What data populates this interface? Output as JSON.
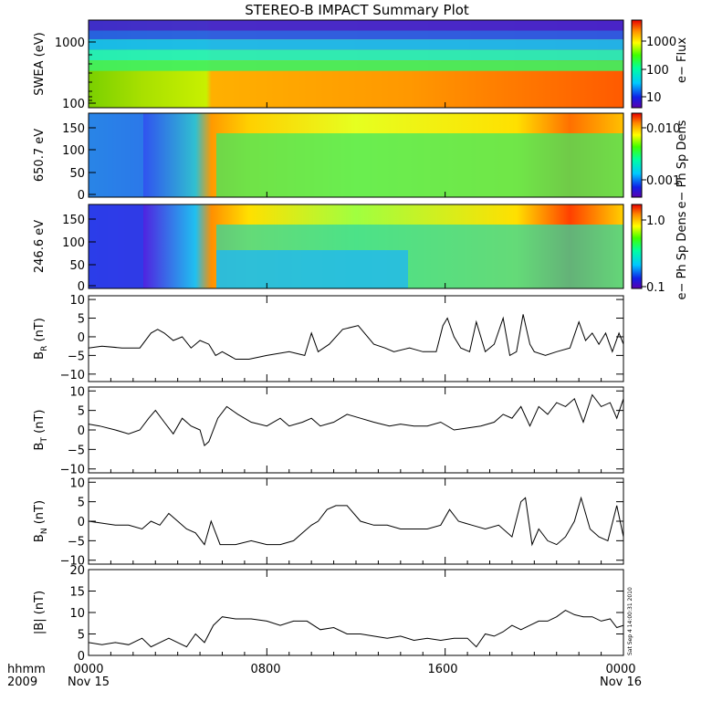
{
  "chart_data": {
    "type": "line",
    "title": "STEREO-B IMPACT Summary Plot",
    "time_axis": {
      "row1_labels": [
        "hhmm",
        "0000",
        "0800",
        "1600",
        "0000"
      ],
      "row2_labels": [
        "2009",
        "Nov 15",
        "Nov 16"
      ],
      "range_hours": [
        0,
        24
      ],
      "tick_hours": [
        0,
        8,
        16,
        24
      ]
    },
    "spectrograms": [
      {
        "name": "swea",
        "ylabel": "SWEA (eV)",
        "ytick_labels": [
          "1000",
          "100"
        ],
        "colorbar_label": "e− Flux",
        "colorbar_ticks": [
          "1000",
          "100",
          "10"
        ],
        "colorscale": "rainbow"
      },
      {
        "name": "pad650",
        "ylabel": "650.7 eV",
        "ytick_labels": [
          "150",
          "100",
          "50",
          "0"
        ],
        "ylim": [
          0,
          180
        ],
        "colorbar_label": "e− Ph Sp Dens",
        "colorbar_ticks": [
          "0.010",
          "0.001"
        ],
        "colorscale": "rainbow"
      },
      {
        "name": "pad246",
        "ylabel": "246.6 eV",
        "ytick_labels": [
          "150",
          "100",
          "50",
          "0"
        ],
        "ylim": [
          0,
          180
        ],
        "colorbar_label": "e− Ph Sp Dens",
        "colorbar_ticks": [
          "1.0",
          "0.1"
        ],
        "colorscale": "rainbow"
      }
    ],
    "line_panels": [
      {
        "name": "br",
        "ylabel_main": "B",
        "ylabel_sub": "R",
        "ylabel_unit": " (nT)",
        "ylim": [
          -12,
          11
        ],
        "ytick_values": [
          10,
          5,
          0,
          -5,
          -10
        ],
        "ytick_labels": [
          "10",
          "5",
          "0",
          "−5",
          "−10"
        ],
        "x": [
          0,
          0.6,
          1.5,
          2.3,
          2.8,
          3.1,
          3.4,
          3.8,
          4.2,
          4.6,
          5.0,
          5.4,
          5.7,
          6.0,
          6.6,
          7.2,
          8.0,
          9.0,
          9.7,
          10.0,
          10.3,
          10.8,
          11.4,
          12.1,
          12.8,
          13.3,
          13.7,
          14.4,
          15.0,
          15.6,
          15.9,
          16.1,
          16.4,
          16.7,
          17.1,
          17.4,
          17.8,
          18.2,
          18.6,
          18.9,
          19.2,
          19.5,
          19.8,
          20.0,
          20.5,
          21.0,
          21.6,
          22.0,
          22.3,
          22.6,
          22.9,
          23.2,
          23.5,
          23.8,
          24.0
        ],
        "y": [
          -3,
          -2.5,
          -3,
          -3,
          1,
          2,
          1,
          -1,
          0,
          -3,
          -1,
          -2,
          -5,
          -4,
          -6,
          -6,
          -5,
          -4,
          -5,
          1,
          -4,
          -2,
          2,
          3,
          -2,
          -3,
          -4,
          -3,
          -4,
          -4,
          3,
          5,
          0,
          -3,
          -4,
          4,
          -4,
          -2,
          5,
          -5,
          -4,
          6,
          -2,
          -4,
          -5,
          -4,
          -3,
          4,
          -1,
          1,
          -2,
          1,
          -4,
          1,
          -2
        ]
      },
      {
        "name": "bt",
        "ylabel_main": "B",
        "ylabel_sub": "T",
        "ylabel_unit": " (nT)",
        "ylim": [
          -11,
          11
        ],
        "ytick_values": [
          10,
          5,
          0,
          -5,
          -10
        ],
        "ytick_labels": [
          "10",
          "5",
          "0",
          "−5",
          "−10"
        ],
        "x": [
          0,
          0.5,
          1.2,
          1.8,
          2.3,
          2.7,
          3.0,
          3.4,
          3.8,
          4.2,
          4.6,
          5.0,
          5.2,
          5.4,
          5.8,
          6.2,
          6.7,
          7.3,
          8.0,
          8.6,
          9.0,
          9.6,
          10.0,
          10.4,
          11.0,
          11.6,
          12.2,
          12.8,
          13.5,
          14.0,
          14.6,
          15.2,
          15.8,
          16.4,
          17.0,
          17.6,
          18.2,
          18.6,
          19.0,
          19.4,
          19.8,
          20.2,
          20.6,
          21.0,
          21.4,
          21.8,
          22.2,
          22.6,
          23.0,
          23.4,
          23.7,
          24.0
        ],
        "y": [
          1.5,
          1,
          0,
          -1,
          0,
          3,
          5,
          2,
          -1,
          3,
          1,
          0,
          -4,
          -3,
          3,
          6,
          4,
          2,
          1,
          3,
          1,
          2,
          3,
          1,
          2,
          4,
          3,
          2,
          1,
          1.5,
          1,
          1,
          2,
          0,
          0.5,
          1,
          2,
          4,
          3,
          6,
          1,
          6,
          4,
          7,
          6,
          8,
          2,
          9,
          6,
          7,
          3,
          8
        ]
      },
      {
        "name": "bn",
        "ylabel_main": "B",
        "ylabel_sub": "N",
        "ylabel_unit": " (nT)",
        "ylim": [
          -11,
          11
        ],
        "ytick_values": [
          10,
          5,
          0,
          -5,
          -10
        ],
        "ytick_labels": [
          "10",
          "5",
          "0",
          "−5",
          "−10"
        ],
        "x": [
          0,
          0.6,
          1.2,
          1.8,
          2.4,
          2.8,
          3.2,
          3.6,
          4.0,
          4.4,
          4.8,
          5.2,
          5.5,
          5.9,
          6.6,
          7.3,
          8.0,
          8.6,
          9.2,
          9.6,
          10.0,
          10.3,
          10.7,
          11.1,
          11.6,
          12.2,
          12.8,
          13.4,
          14.0,
          14.6,
          15.2,
          15.8,
          16.2,
          16.6,
          17.2,
          17.8,
          18.4,
          19.0,
          19.4,
          19.6,
          19.9,
          20.2,
          20.6,
          21.0,
          21.4,
          21.8,
          22.1,
          22.5,
          22.9,
          23.3,
          23.7,
          24.0
        ],
        "y": [
          0,
          -0.5,
          -1,
          -1,
          -2,
          0,
          -1,
          2,
          0,
          -2,
          -3,
          -6,
          0,
          -6,
          -6,
          -5,
          -6,
          -6,
          -5,
          -3,
          -1,
          0,
          3,
          4,
          4,
          0,
          -1,
          -1,
          -2,
          -2,
          -2,
          -1,
          3,
          0,
          -1,
          -2,
          -1,
          -4,
          5,
          6,
          -6,
          -2,
          -5,
          -6,
          -4,
          0,
          6,
          -2,
          -4,
          -5,
          4,
          -4
        ]
      },
      {
        "name": "bmag",
        "ylabel_main": "|B|",
        "ylabel_sub": "",
        "ylabel_unit": " (nT)",
        "ylim": [
          0,
          20
        ],
        "ytick_values": [
          20,
          15,
          10,
          5,
          0
        ],
        "ytick_labels": [
          "20",
          "15",
          "10",
          "5",
          "0"
        ],
        "x": [
          0,
          0.6,
          1.2,
          1.8,
          2.4,
          2.8,
          3.2,
          3.6,
          4.0,
          4.4,
          4.8,
          5.2,
          5.6,
          6.0,
          6.6,
          7.3,
          8.0,
          8.6,
          9.2,
          9.8,
          10.4,
          11.0,
          11.6,
          12.2,
          12.8,
          13.4,
          14.0,
          14.6,
          15.2,
          15.8,
          16.4,
          17.0,
          17.4,
          17.8,
          18.2,
          18.6,
          19.0,
          19.4,
          19.8,
          20.2,
          20.6,
          21.0,
          21.4,
          21.8,
          22.2,
          22.6,
          23.0,
          23.4,
          23.7,
          24.0
        ],
        "y": [
          3,
          2.5,
          3,
          2.5,
          4,
          2,
          3,
          4,
          3,
          2,
          5,
          3,
          7,
          9,
          8.5,
          8.5,
          8,
          7,
          8,
          8,
          6,
          6.5,
          5,
          5,
          4.5,
          4,
          4.5,
          3.5,
          4,
          3.5,
          4,
          4,
          2,
          5,
          4.5,
          5.5,
          7,
          6,
          7,
          8,
          8,
          9,
          10.5,
          9.5,
          9,
          9,
          8,
          8.5,
          6.5,
          7
        ]
      }
    ],
    "side_stamp": "Sat Sep  4 14:00:31 2010"
  }
}
